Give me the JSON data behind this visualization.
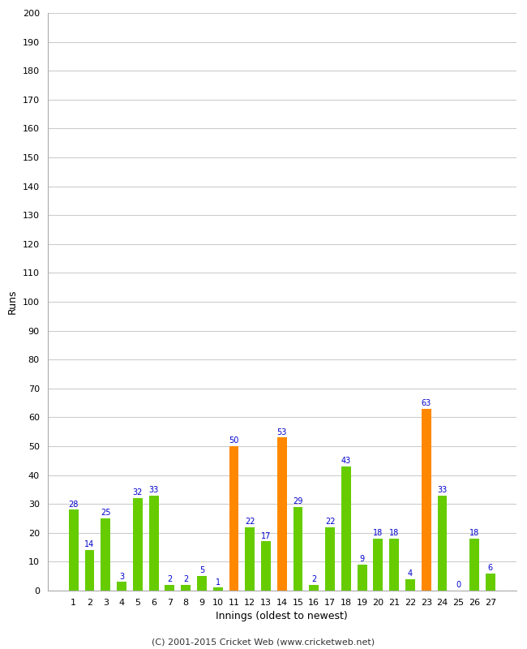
{
  "innings": [
    1,
    2,
    3,
    4,
    5,
    6,
    7,
    8,
    9,
    10,
    11,
    12,
    13,
    14,
    15,
    16,
    17,
    18,
    19,
    20,
    21,
    22,
    23,
    24,
    25,
    26,
    27
  ],
  "values": [
    28,
    14,
    25,
    3,
    32,
    33,
    2,
    2,
    5,
    1,
    50,
    22,
    17,
    53,
    29,
    2,
    22,
    43,
    9,
    18,
    18,
    4,
    63,
    33,
    0,
    18,
    6
  ],
  "colors": [
    "#66cc00",
    "#66cc00",
    "#66cc00",
    "#66cc00",
    "#66cc00",
    "#66cc00",
    "#66cc00",
    "#66cc00",
    "#66cc00",
    "#66cc00",
    "#ff8800",
    "#66cc00",
    "#66cc00",
    "#ff8800",
    "#66cc00",
    "#66cc00",
    "#66cc00",
    "#66cc00",
    "#66cc00",
    "#66cc00",
    "#66cc00",
    "#66cc00",
    "#ff8800",
    "#66cc00",
    "#66cc00",
    "#66cc00",
    "#66cc00"
  ],
  "xlabel": "Innings (oldest to newest)",
  "ylabel": "Runs",
  "ylim": [
    0,
    200
  ],
  "yticks": [
    0,
    10,
    20,
    30,
    40,
    50,
    60,
    70,
    80,
    90,
    100,
    110,
    120,
    130,
    140,
    150,
    160,
    170,
    180,
    190,
    200
  ],
  "label_color": "#0000cc",
  "label_fontsize": 7,
  "tick_fontsize": 8,
  "xlabel_fontsize": 9,
  "ylabel_fontsize": 9,
  "background_color": "#ffffff",
  "grid_color": "#cccccc",
  "footer": "(C) 2001-2015 Cricket Web (www.cricketweb.net)",
  "footer_fontsize": 8,
  "footer_color": "#333333",
  "bar_width": 0.6
}
